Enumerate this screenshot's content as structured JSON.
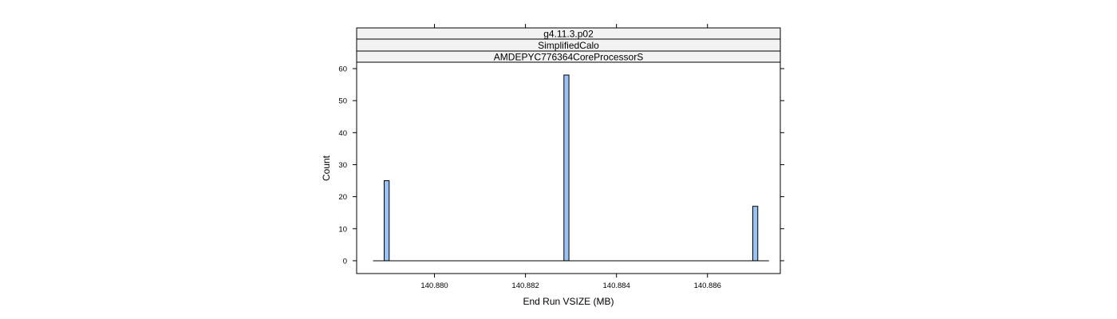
{
  "chart_data": {
    "type": "bar",
    "strips": [
      "g4.11.3.p02",
      "SimplifiedCalo",
      "AMDEPYC776364CoreProcessorS"
    ],
    "xlabel": "End Run VSIZE (MB)",
    "ylabel": "Count",
    "x_ticks": [
      "140.880",
      "140.882",
      "140.884",
      "140.886"
    ],
    "y_ticks": [
      "0",
      "10",
      "20",
      "30",
      "40",
      "50",
      "60"
    ],
    "xlim": [
      140.87829,
      140.8876
    ],
    "ylim": [
      -4,
      62
    ],
    "bin_width": 0.00011,
    "bars": [
      {
        "x": 140.87895,
        "count": 25
      },
      {
        "x": 140.8829,
        "count": 58
      },
      {
        "x": 140.88705,
        "count": 17
      }
    ],
    "baseline_range": [
      140.87865,
      140.88735
    ],
    "colors": {
      "bar_fill": "#99c3f5",
      "bar_stroke": "#000000",
      "strip_bg": "#f2f2f2"
    }
  }
}
